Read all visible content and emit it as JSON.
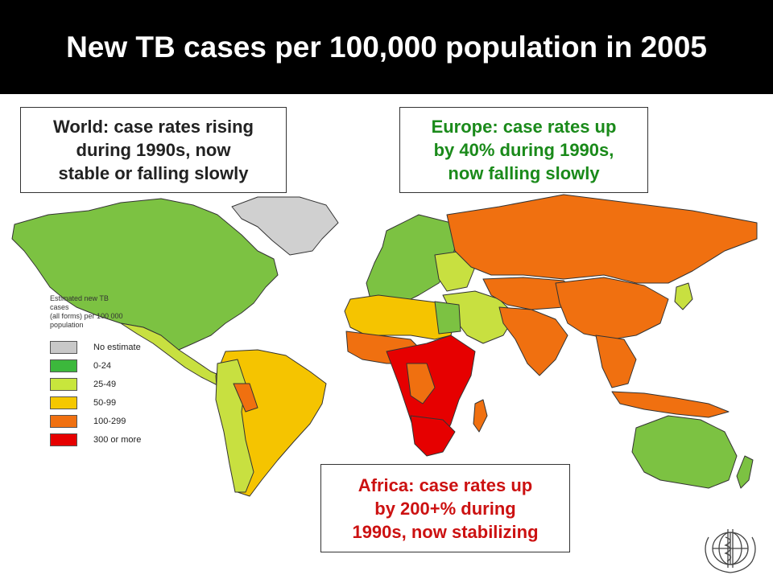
{
  "title": "New TB cases per 100,000 population in 2005",
  "callouts": {
    "world": [
      "World: case rates rising",
      "during 1990s, now",
      "stable or falling slowly"
    ],
    "europe": [
      "Europe: case rates up",
      "by 40% during 1990s,",
      "now falling slowly"
    ],
    "africa": [
      "Africa: case rates up",
      "by 200+% during",
      "1990s, now stabilizing"
    ]
  },
  "callout_colors": {
    "world": "#222222",
    "europe": "#1a8a1a",
    "africa": "#cc1111"
  },
  "legend": {
    "title": [
      "Estimated new TB",
      "cases",
      "(all forms) per 100 000",
      "population"
    ],
    "items": [
      {
        "label": "No estimate",
        "color": "#c8c8c8"
      },
      {
        "label": "0-24",
        "color": "#3cb83c"
      },
      {
        "label": "25-49",
        "color": "#c8e63c"
      },
      {
        "label": "50-99",
        "color": "#f5c800"
      },
      {
        "label": "100-299",
        "color": "#f07010"
      },
      {
        "label": "300 or more",
        "color": "#e60000"
      }
    ]
  },
  "map_colors": {
    "no_estimate": "#d0d0d0",
    "low": "#7cc242",
    "low_mid": "#c8e040",
    "mid": "#f5c400",
    "high": "#f07010",
    "very_high": "#e60000",
    "border": "#333333"
  },
  "logo": {
    "icon": "who-emblem-icon"
  }
}
